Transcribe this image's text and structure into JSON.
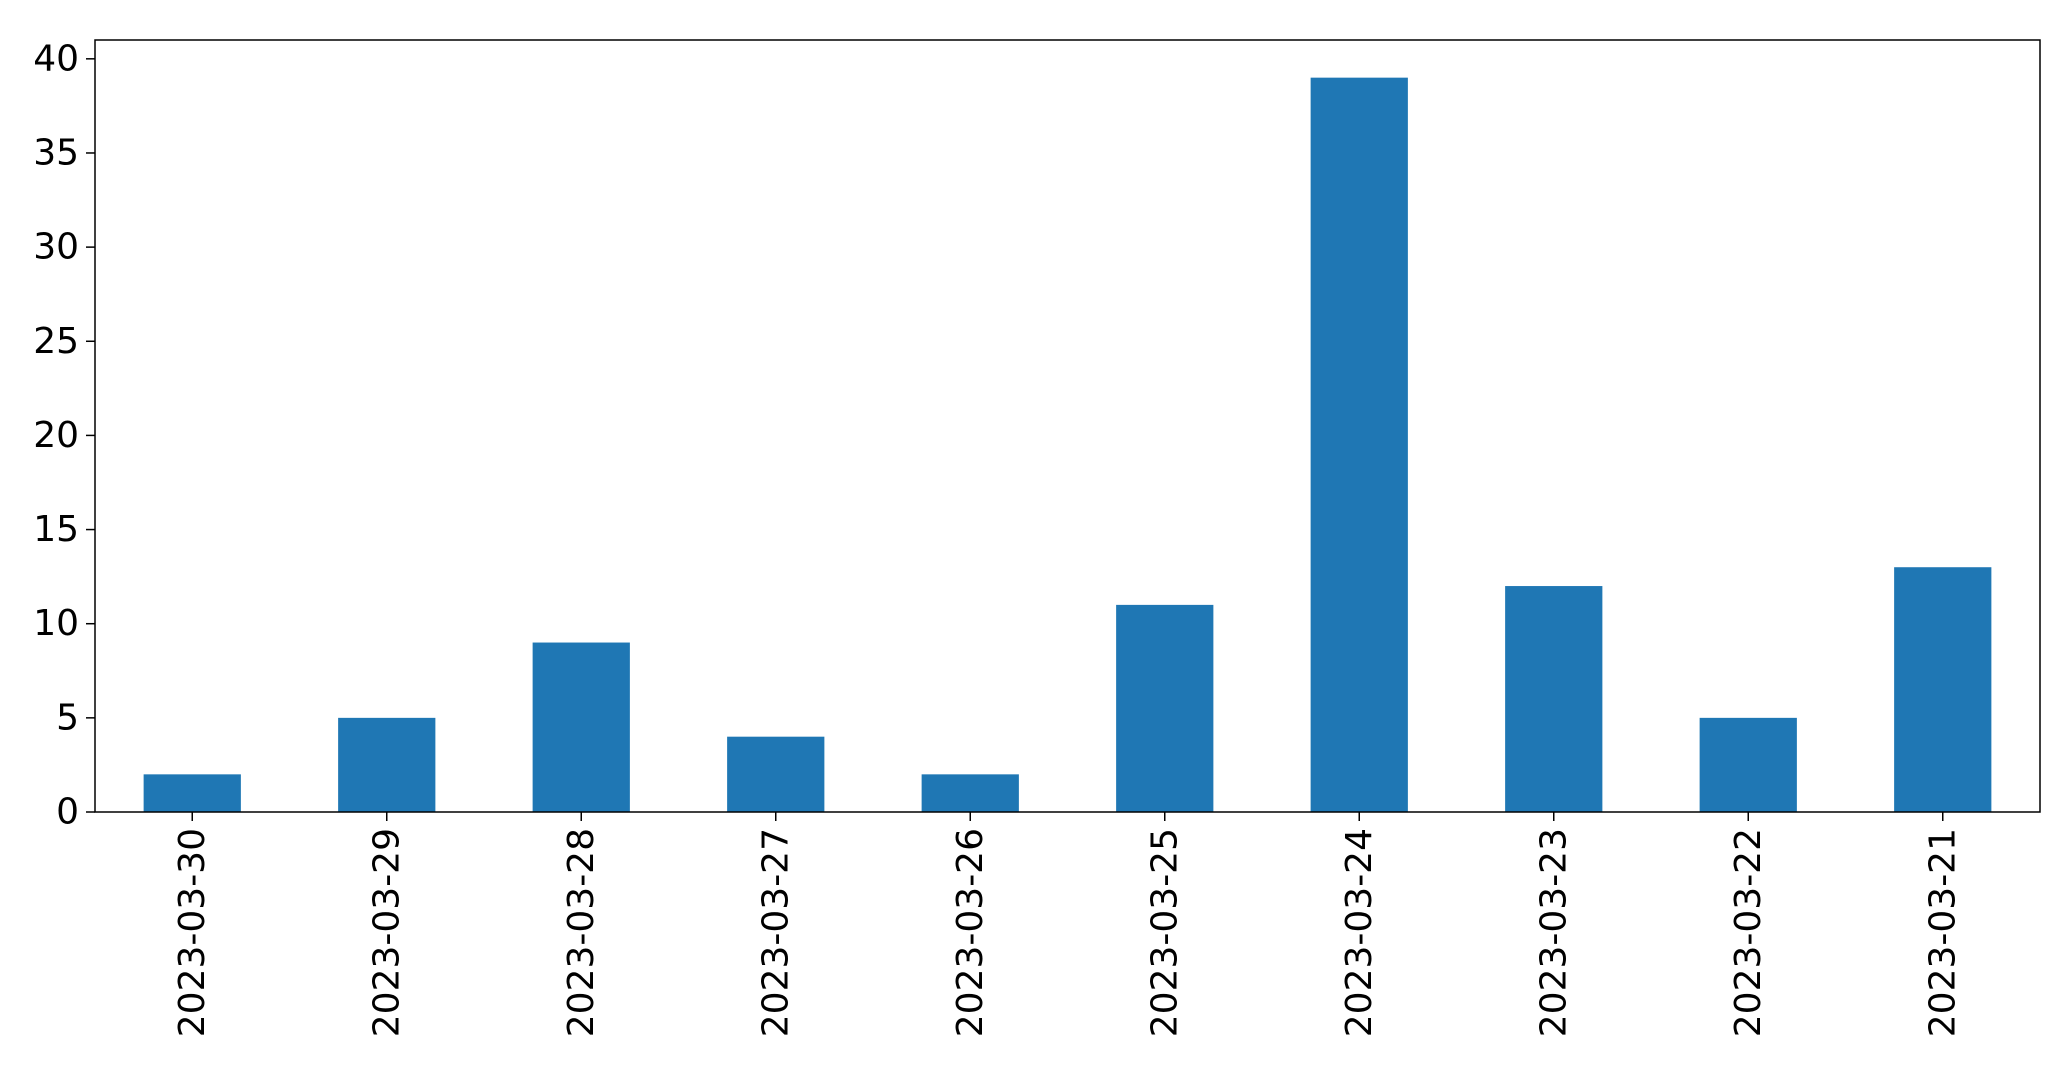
{
  "chart_data": {
    "type": "bar",
    "title": "",
    "xlabel": "",
    "ylabel": "",
    "categories": [
      "2023-03-30",
      "2023-03-29",
      "2023-03-28",
      "2023-03-27",
      "2023-03-26",
      "2023-03-25",
      "2023-03-24",
      "2023-03-23",
      "2023-03-22",
      "2023-03-21"
    ],
    "values": [
      2,
      5,
      9,
      4,
      2,
      11,
      39,
      12,
      5,
      13
    ],
    "ylim": [
      0,
      41
    ],
    "yticks": [
      0,
      5,
      10,
      15,
      20,
      25,
      30,
      35,
      40
    ],
    "grid": false,
    "legend": "none",
    "bar_color": "#1f77b4"
  }
}
